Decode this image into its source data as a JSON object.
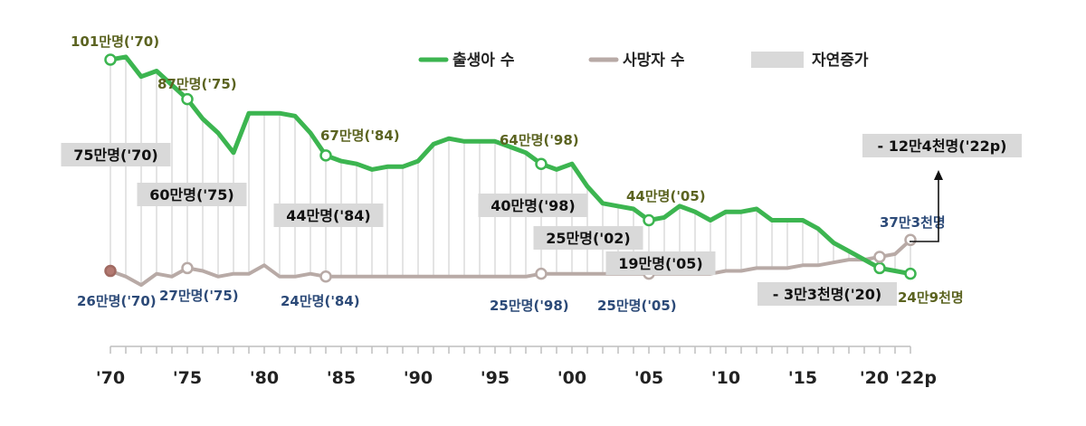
{
  "chart_data": {
    "type": "line",
    "x_tick_labels": [
      "'70",
      "'75",
      "'80",
      "'85",
      "'90",
      "'95",
      "'00",
      "'05",
      "'10",
      "'15",
      "'20",
      "'22p"
    ],
    "years": [
      1970,
      1971,
      1972,
      1973,
      1974,
      1975,
      1976,
      1977,
      1978,
      1979,
      1980,
      1981,
      1982,
      1983,
      1984,
      1985,
      1986,
      1987,
      1988,
      1989,
      1990,
      1991,
      1992,
      1993,
      1994,
      1995,
      1996,
      1997,
      1998,
      1999,
      2000,
      2001,
      2002,
      2003,
      2004,
      2005,
      2006,
      2007,
      2008,
      2009,
      2010,
      2011,
      2012,
      2013,
      2014,
      2015,
      2016,
      2017,
      2018,
      2019,
      2020,
      2021,
      2022
    ],
    "ylim": [
      0,
      110
    ],
    "series": [
      {
        "name": "출생아 수",
        "color": "#3cb550",
        "values": [
          101,
          102,
          95,
          97,
          92,
          87,
          80,
          75,
          68,
          82,
          82,
          82,
          81,
          75,
          67,
          65,
          64,
          62,
          63,
          63,
          65,
          71,
          73,
          72,
          72,
          72,
          70,
          68,
          64,
          62,
          64,
          56,
          50,
          49,
          48,
          44,
          45,
          49,
          47,
          44,
          47,
          47,
          48,
          44,
          44,
          44,
          41,
          36,
          33,
          30,
          27,
          26,
          25
        ]
      },
      {
        "name": "사망자 수",
        "color": "#b8aaa6",
        "values": [
          26,
          24,
          21,
          25,
          24,
          27,
          26,
          24,
          25,
          25,
          28,
          24,
          24,
          25,
          24,
          24,
          24,
          24,
          24,
          24,
          24,
          24,
          24,
          24,
          24,
          24,
          24,
          24,
          25,
          25,
          25,
          25,
          25,
          25,
          25,
          25,
          25,
          25,
          25,
          25,
          26,
          26,
          27,
          27,
          27,
          28,
          28,
          29,
          30,
          30,
          31,
          32,
          37
        ]
      },
      {
        "name": "자연증가",
        "color": "#d9d9d9"
      }
    ],
    "annotations": {
      "birth": [
        {
          "year": 1970,
          "text": "101만명('70)"
        },
        {
          "year": 1975,
          "text": "87만명('75)"
        },
        {
          "year": 1984,
          "text": "67만명('84)"
        },
        {
          "year": 1998,
          "text": "64만명('98)"
        },
        {
          "year": 2005,
          "text": "44만명('05)"
        },
        {
          "year": 2022,
          "text": "24만9천명"
        }
      ],
      "death": [
        {
          "year": 1970,
          "text": "26만명('70)"
        },
        {
          "year": 1975,
          "text": "27만명('75)"
        },
        {
          "year": 1984,
          "text": "24만명('84)"
        },
        {
          "year": 1998,
          "text": "25만명('98)"
        },
        {
          "year": 2005,
          "text": "25만명('05)"
        },
        {
          "year": 2022,
          "text": "37만3천명"
        }
      ],
      "natural_increase": [
        {
          "year": 1970,
          "text": "75만명('70)"
        },
        {
          "year": 1975,
          "text": "60만명('75)"
        },
        {
          "year": 1984,
          "text": "44만명('84)"
        },
        {
          "year": 1998,
          "text": "40만명('98)"
        },
        {
          "year": 2002,
          "text": "25만명('02)"
        },
        {
          "year": 2005,
          "text": "19만명('05)"
        },
        {
          "year": 2020,
          "text": "- 3만3천명('20)"
        },
        {
          "year": 2022,
          "text": "- 12만4천명('22p)"
        }
      ]
    }
  }
}
